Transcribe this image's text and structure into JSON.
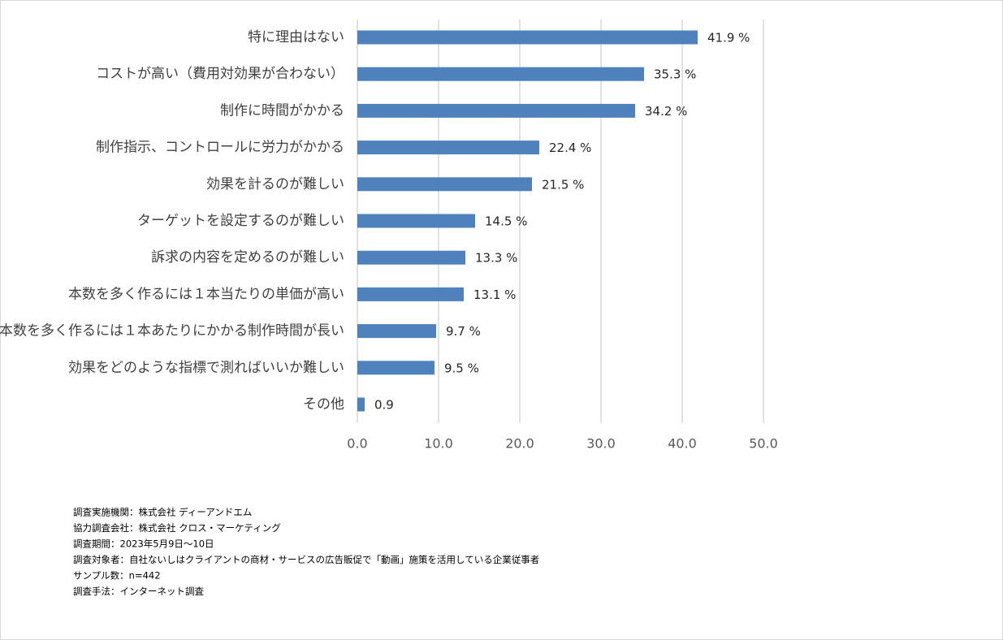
{
  "chart_data": {
    "type": "bar",
    "orientation": "horizontal",
    "categories": [
      "特に理由はない",
      "コストが高い（費用対効果が合わない）",
      "制作に時間がかかる",
      "制作指示、コントロールに労力がかかる",
      "効果を計るのが難しい",
      "ターゲットを設定するのが難しい",
      "訴求の内容を定めるのが難しい",
      "本数を多く作るには１本当たりの単価が高い",
      "本数を多く作るには１本あたりにかかる制作時間が長い",
      "効果をどのような指標で測ればいいか難しい",
      "その他"
    ],
    "values": [
      41.9,
      35.3,
      34.2,
      22.4,
      21.5,
      14.5,
      13.3,
      13.1,
      9.7,
      9.5,
      0.9
    ],
    "value_labels": [
      "41.9 %",
      "35.3 %",
      "34.2 %",
      "22.4 %",
      "21.5 %",
      "14.5 %",
      "13.3 %",
      "13.1 %",
      "9.7 %",
      "9.5 %",
      "0.9"
    ],
    "color": "#4f81bd",
    "xlim": [
      0,
      50
    ],
    "xticks": [
      {
        "value": 0,
        "label": "0.0"
      },
      {
        "value": 10,
        "label": "10.0"
      },
      {
        "value": 20,
        "label": "20.0"
      },
      {
        "value": 30,
        "label": "30.0"
      },
      {
        "value": 40,
        "label": "40.0"
      },
      {
        "value": 50,
        "label": "50.0"
      }
    ],
    "grid": true,
    "notes": [
      "調査実施機関：株式会社 ディーアンドエム",
      "協力調査会社：株式会社 クロス・マーケティング",
      "調査期間：2023年5月9日～10日",
      "調査対象者：自社ないしはクライアントの商材・サービスの広告販促で「動画」施策を活用している企業従事者",
      "サンプル数：n=442",
      "調査手法：インターネット調査"
    ]
  }
}
